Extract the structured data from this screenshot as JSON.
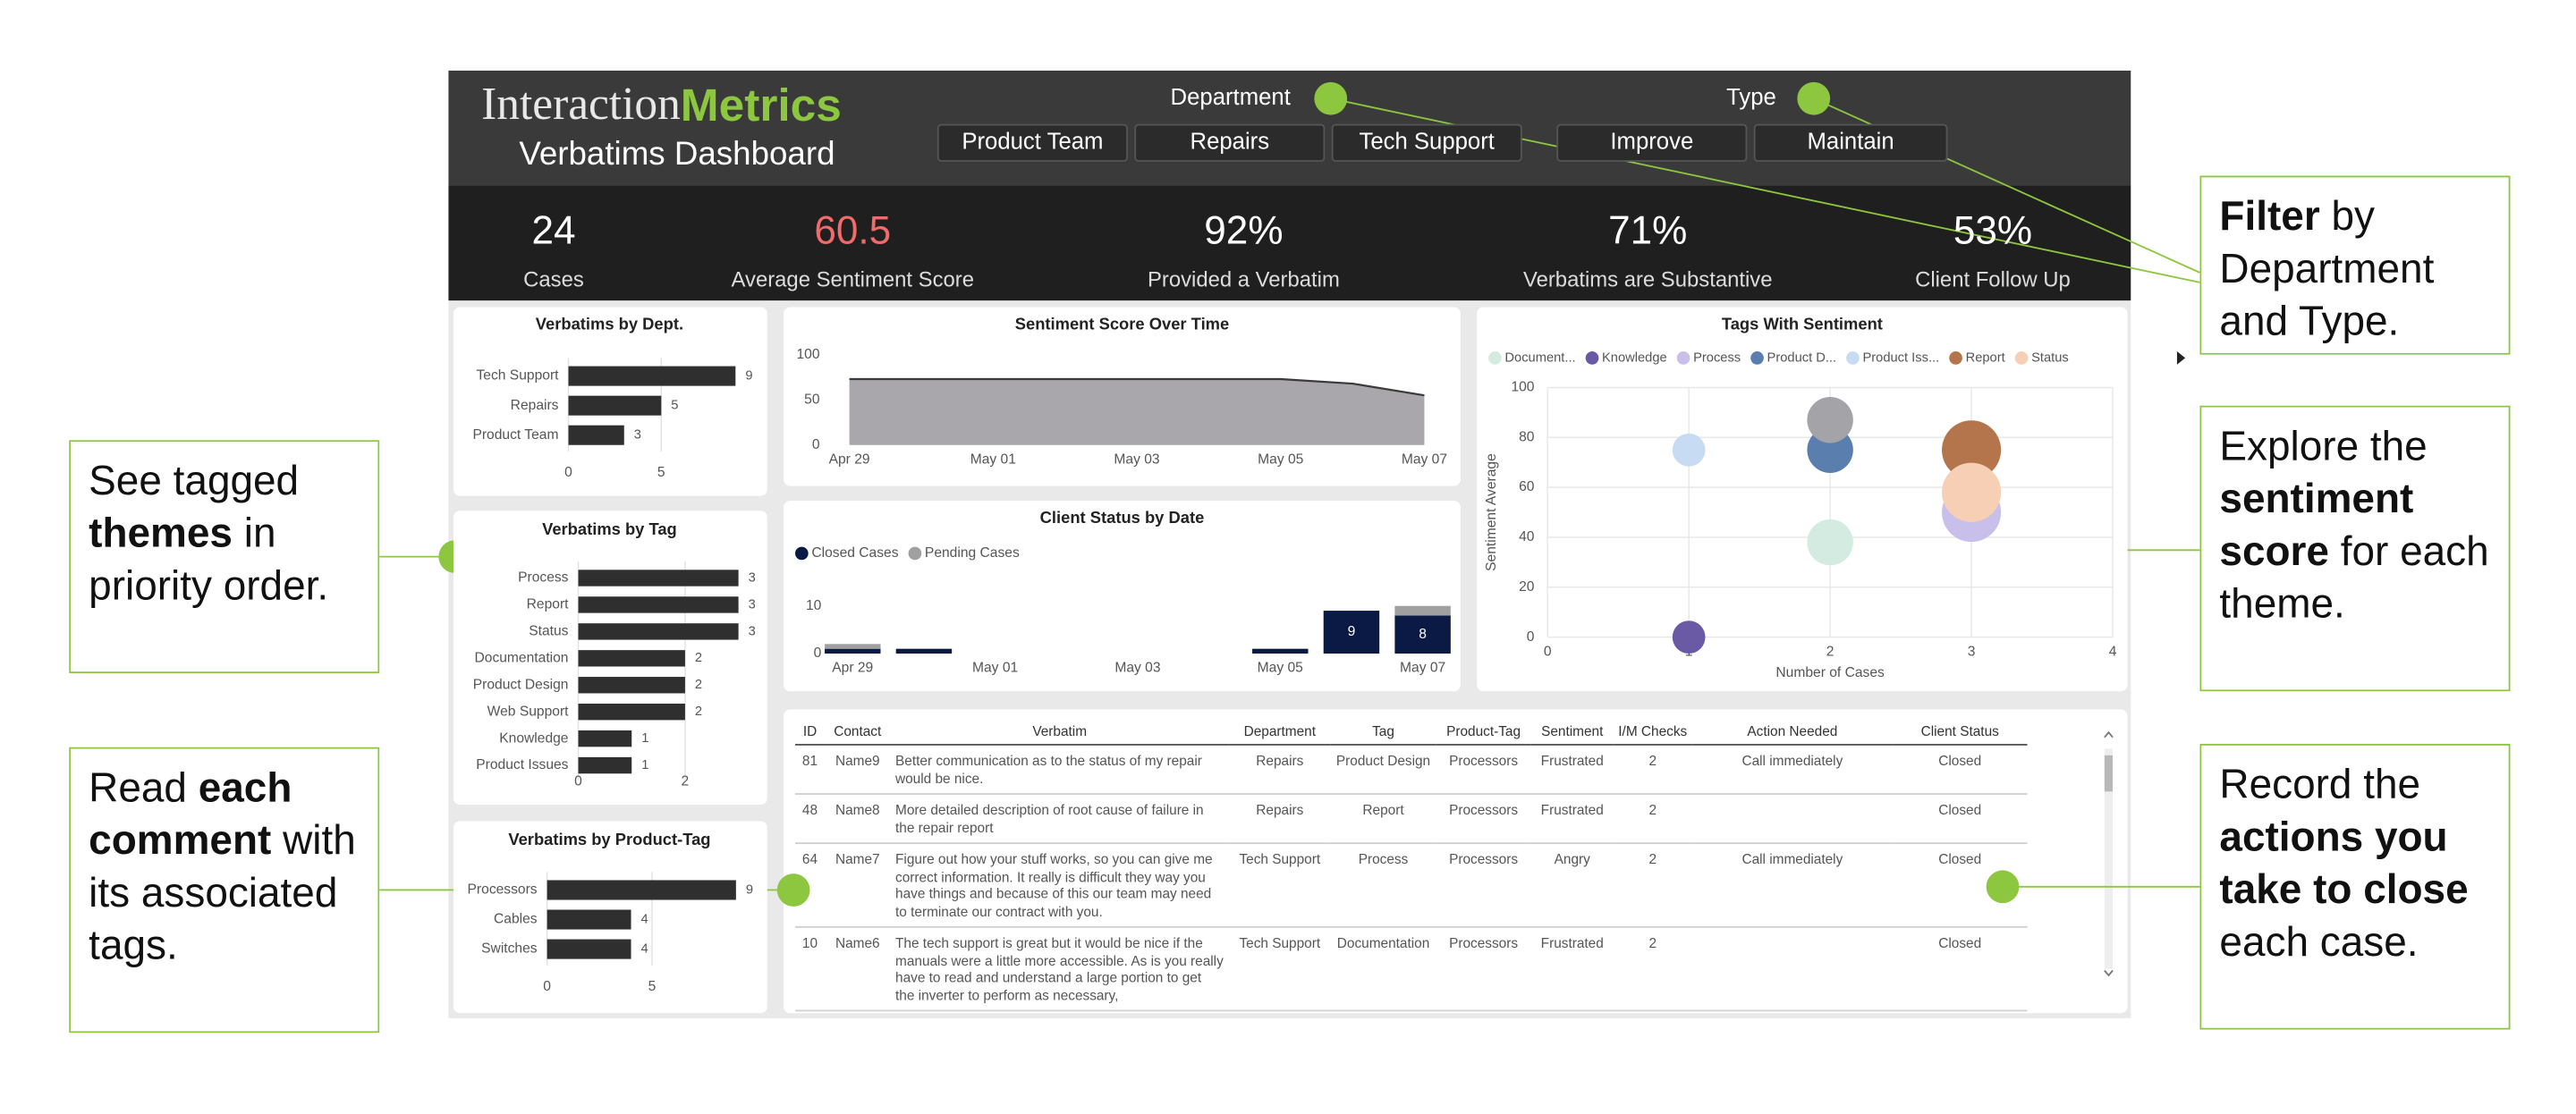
{
  "header": {
    "logo": {
      "light": "Interaction",
      "accent": "Metrics"
    },
    "subtitle": "Verbatims Dashboard"
  },
  "filters": [
    {
      "label": "Department",
      "options": [
        "Product Team",
        "Repairs",
        "Tech Support"
      ]
    },
    {
      "label": "Type",
      "options": [
        "Improve",
        "Maintain"
      ]
    }
  ],
  "kpis": [
    {
      "value": "24",
      "label": "Cases",
      "color": "#ffffff"
    },
    {
      "value": "60.5",
      "label": "Average Sentiment Score",
      "color": "#f26b6b"
    },
    {
      "value": "92%",
      "label": "Provided a Verbatim",
      "color": "#ffffff"
    },
    {
      "value": "71%",
      "label": "Verbatims are Substantive",
      "color": "#ffffff"
    },
    {
      "value": "53%",
      "label": "Client Follow Up",
      "color": "#ffffff"
    }
  ],
  "chart_data": [
    {
      "type": "hbar",
      "title": "Verbatims by Dept.",
      "categories": [
        "Tech Support",
        "Repairs",
        "Product Team"
      ],
      "values": [
        9,
        5,
        3
      ],
      "color": "#2f2f2f",
      "xlim": [
        0,
        10
      ],
      "xticks": [
        0,
        5
      ],
      "grid": true
    },
    {
      "type": "hbar",
      "title": "Verbatims by Tag",
      "categories": [
        "Process",
        "Report",
        "Status",
        "Documentation",
        "Product Design",
        "Web Support",
        "Knowledge",
        "Product Issues"
      ],
      "values": [
        3,
        3,
        3,
        2,
        2,
        2,
        1,
        1
      ],
      "color": "#2f2f2f",
      "xlim": [
        0,
        3
      ],
      "xticks": [
        0,
        2
      ],
      "grid": true
    },
    {
      "type": "hbar",
      "title": "Verbatims by Product-Tag",
      "categories": [
        "Processors",
        "Cables",
        "Switches"
      ],
      "values": [
        9,
        4,
        4
      ],
      "color": "#2f2f2f",
      "xlim": [
        0,
        9
      ],
      "xticks": [
        0,
        5
      ],
      "grid": true
    },
    {
      "type": "area",
      "title": "Sentiment Score Over Time",
      "categories": [
        "Apr 29",
        null,
        "May 01",
        null,
        "May 03",
        null,
        "May 05",
        null,
        "May 07"
      ],
      "values": [
        73,
        73,
        73,
        73,
        73,
        73,
        73,
        68,
        55
      ],
      "color": "#a9a7ab",
      "ylim": [
        0,
        100
      ],
      "yticks": [
        0,
        50,
        100
      ],
      "grid": false
    },
    {
      "type": "stacked_bar",
      "title": "Client Status by Date",
      "categories": [
        "Apr 29",
        null,
        "May 01",
        null,
        "May 03",
        null,
        "May 05",
        null,
        "May 07"
      ],
      "series": [
        {
          "name": "Closed Cases",
          "color": "#0b1a45",
          "values": [
            1,
            1,
            0,
            0,
            0,
            0,
            1,
            9,
            8
          ]
        },
        {
          "name": "Pending Cases",
          "color": "#a0a0a0",
          "values": [
            1,
            0,
            0,
            0,
            0,
            0,
            0,
            0,
            2
          ]
        }
      ],
      "ylim": [
        0,
        13
      ],
      "yticks": [
        0,
        10
      ],
      "grid": false
    },
    {
      "type": "bubble",
      "title": "Tags With Sentiment",
      "x_label": "Number of Cases",
      "y_label": "Sentiment Average",
      "series": [
        {
          "name": "Document...",
          "color": "#d3ebe0",
          "x": [
            2
          ],
          "values": [
            38
          ]
        },
        {
          "name": "Knowledge",
          "color": "#6a5aa6",
          "x": [
            1
          ],
          "values": [
            0
          ]
        },
        {
          "name": "Process",
          "color": "#c8c0ea",
          "x": [
            3
          ],
          "values": [
            50
          ]
        },
        {
          "name": "Product D...",
          "color": "#5a7fae",
          "x": [
            2
          ],
          "values": [
            75
          ]
        },
        {
          "name": "Product Iss...",
          "color": "#c7dbf3",
          "x": [
            1
          ],
          "values": [
            75
          ]
        },
        {
          "name": "Report",
          "color": "#b5754c",
          "x": [
            3
          ],
          "values": [
            75
          ]
        },
        {
          "name": "Status",
          "color": "#f7cfb4",
          "x": [
            3
          ],
          "values": [
            58
          ]
        },
        {
          "name": null,
          "color": "#a3a3a8",
          "x": [
            2
          ],
          "values": [
            87
          ]
        }
      ],
      "xlim": [
        0,
        4
      ],
      "xticks": [
        0,
        1,
        2,
        3,
        4
      ],
      "ylim": [
        0,
        100
      ],
      "yticks": [
        0,
        20,
        40,
        60,
        80,
        100
      ],
      "grid": true
    }
  ],
  "table": {
    "columns": [
      "ID",
      "Contact",
      "Verbatim",
      "Department",
      "Tag",
      "Product-Tag",
      "Sentiment",
      "I/M Checks",
      "Action Needed",
      "Client Status"
    ],
    "rows": [
      [
        81,
        "Name9",
        "Better communication as to the status of my repair would be nice.",
        "Repairs",
        "Product Design",
        "Processors",
        "Frustrated",
        2,
        "Call immediately",
        "Closed"
      ],
      [
        48,
        "Name8",
        "More detailed description of root cause of failure in the repair report",
        "Repairs",
        "Report",
        "Processors",
        "Frustrated",
        2,
        null,
        "Closed"
      ],
      [
        64,
        "Name7",
        "Figure out how your stuff works, so you can give me correct information. It really is difficult they way you have things and because of this our team may need to terminate our contract with you.",
        "Tech Support",
        "Process",
        "Processors",
        "Angry",
        2,
        "Call immediately",
        "Closed"
      ],
      [
        10,
        "Name6",
        "The tech support is great but it would be nice if the manuals were a little more accessible. As is you really have to read and understand a large portion to get the inverter to perform as necessary,",
        "Tech Support",
        "Documentation",
        "Processors",
        "Frustrated",
        2,
        null,
        "Closed"
      ]
    ]
  },
  "callouts": [
    {
      "parts": [
        {
          "text": "See tagged ",
          "bold": false
        },
        {
          "text": "themes",
          "bold": true
        },
        {
          "text": " in priority order.",
          "bold": false
        }
      ]
    },
    {
      "parts": [
        {
          "text": "Read ",
          "bold": false
        },
        {
          "text": "each comment",
          "bold": true
        },
        {
          "text": " with its associated tags.",
          "bold": false
        }
      ]
    },
    {
      "parts": [
        {
          "text": "Filter",
          "bold": true
        },
        {
          "text": " by Department and Type.",
          "bold": false
        }
      ]
    },
    {
      "parts": [
        {
          "text": "Explore the ",
          "bold": false
        },
        {
          "text": "sentiment score",
          "bold": true
        },
        {
          "text": " for each theme.",
          "bold": false
        }
      ]
    },
    {
      "parts": [
        {
          "text": "Record the ",
          "bold": false
        },
        {
          "text": "actions you take to close",
          "bold": true
        },
        {
          "text": " each case.",
          "bold": false
        }
      ]
    }
  ]
}
